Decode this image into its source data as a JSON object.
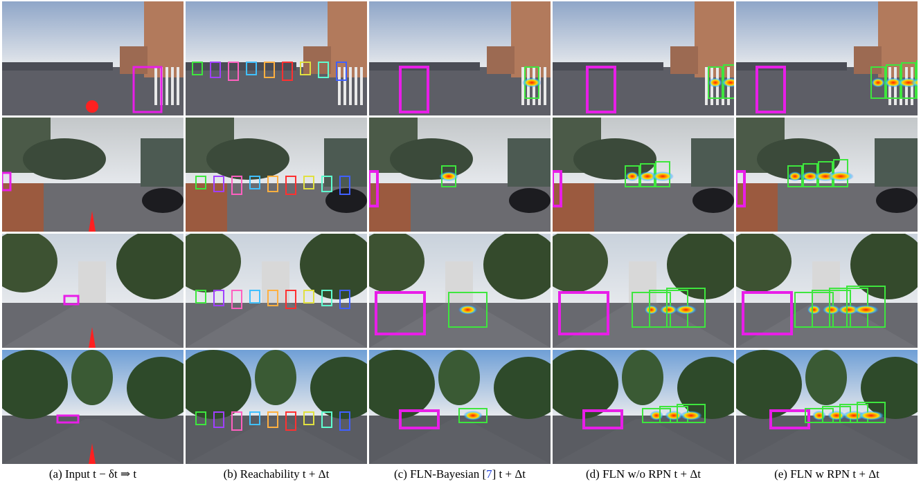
{
  "captions": {
    "a": "(a) Input t − δt ⇒ t",
    "b": "(b) Reachability t + Δt",
    "c_prefix": "(c) FLN-Bayesian [",
    "c_ref": "7",
    "c_suffix": "] t + Δt",
    "d": "(d) FLN w/o RPN t + Δt",
    "e": "(e) FLN w RPN t + Δt"
  },
  "rows": [
    {
      "scene": "parking-lot-storefront"
    },
    {
      "scene": "intersection-office-building"
    },
    {
      "scene": "road-with-scooter"
    },
    {
      "scene": "tree-lined-boulevard"
    }
  ],
  "colors": {
    "input_box": "#e81ee8",
    "prediction_box": "#3ee63e",
    "motion_marker": "#ff2020",
    "heatmap_core": "#ff1a00"
  }
}
